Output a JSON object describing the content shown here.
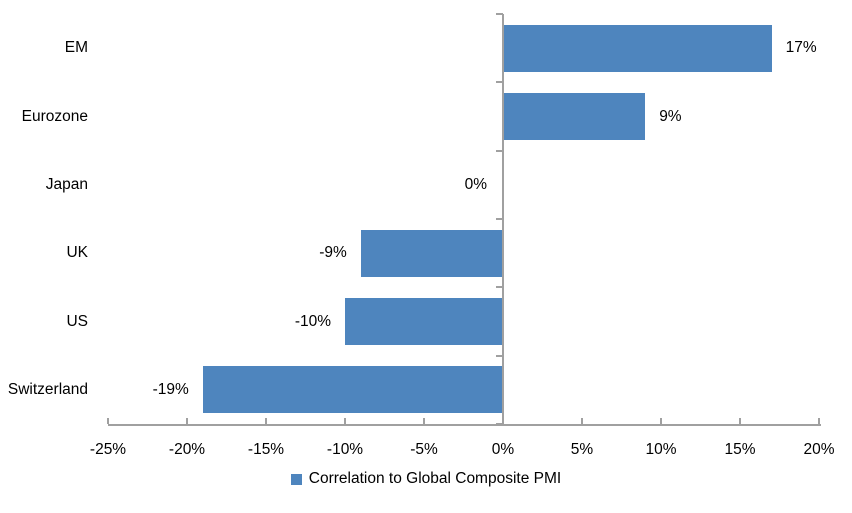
{
  "chart_data": {
    "type": "bar",
    "orientation": "horizontal",
    "title": "",
    "categories": [
      "EM",
      "Eurozone",
      "Japan",
      "UK",
      "US",
      "Switzerland"
    ],
    "series": [
      {
        "name": "Correlation to Global Composite PMI",
        "values": [
          17,
          9,
          0,
          -9,
          -10,
          -19
        ],
        "data_labels": [
          "17%",
          "9%",
          "0%",
          "-9%",
          "-10%",
          "-19%"
        ]
      }
    ],
    "xlabel": "",
    "ylabel": "",
    "xlim": [
      -25,
      20
    ],
    "x_ticks": [
      -25,
      -20,
      -15,
      -10,
      -5,
      0,
      5,
      10,
      15,
      20
    ],
    "x_tick_labels": [
      "-25%",
      "-20%",
      "-15%",
      "-10%",
      "-5%",
      "0%",
      "5%",
      "10%",
      "15%",
      "20%"
    ],
    "grid": false,
    "data_labels_visible": true,
    "legend_position": "bottom",
    "colors": {
      "bar": "#4E85BE",
      "axis": "#A0A0A0",
      "text": "#000000",
      "background": "#FFFFFF"
    }
  },
  "legend": {
    "label": "Correlation to Global Composite PMI"
  }
}
